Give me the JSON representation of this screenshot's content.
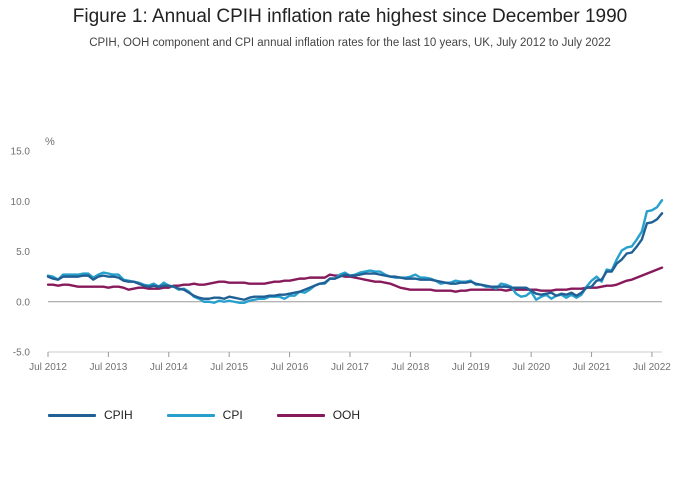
{
  "title": "Figure 1: Annual CPIH inflation rate highest since December 1990",
  "subtitle": "CPIH, OOH component and CPI annual inflation rates for the last 10 years, UK, July 2012 to July 2022",
  "colors": {
    "CPIH": "#206095",
    "CPI": "#27a0cc",
    "OOH": "#871a5b",
    "axis": "#cccccc",
    "zero": "#999999"
  },
  "chart_data": {
    "type": "line",
    "title": "Figure 1: Annual CPIH inflation rate highest since December 1990",
    "ylabel": "%",
    "xlabel": "",
    "ylim": [
      -5.0,
      15.0
    ],
    "yticks": [
      "15.0",
      "10.0",
      "5.0",
      "0.0",
      "-5.0"
    ],
    "yticks_values": [
      15,
      10,
      5,
      0,
      -5
    ],
    "xticks": [
      "Jul 2012",
      "Jul 2013",
      "Jul 2014",
      "Jul 2015",
      "Jul 2016",
      "Jul 2017",
      "Jul 2018",
      "Jul 2019",
      "Jul 2020",
      "Jul 2021",
      "Jul 2022"
    ],
    "x_start": "Jul 2012",
    "x_end": "Jul 2022",
    "x_unit": "months since Jul 2012",
    "grid": false,
    "legend_position": "bottom-left",
    "series": [
      {
        "name": "CPIH",
        "values": [
          2.5,
          2.3,
          2.2,
          2.5,
          2.5,
          2.5,
          2.5,
          2.6,
          2.6,
          2.2,
          2.5,
          2.6,
          2.5,
          2.5,
          2.4,
          2.1,
          2.0,
          2.0,
          1.8,
          1.6,
          1.5,
          1.6,
          1.5,
          1.6,
          1.6,
          1.5,
          1.3,
          1.2,
          0.9,
          0.6,
          0.4,
          0.3,
          0.3,
          0.4,
          0.4,
          0.3,
          0.5,
          0.4,
          0.3,
          0.2,
          0.4,
          0.5,
          0.5,
          0.5,
          0.6,
          0.6,
          0.7,
          0.7,
          0.8,
          0.9,
          1.0,
          1.2,
          1.4,
          1.6,
          1.8,
          1.9,
          2.3,
          2.3,
          2.5,
          2.7,
          2.6,
          2.6,
          2.7,
          2.8,
          2.8,
          2.8,
          2.7,
          2.6,
          2.5,
          2.5,
          2.4,
          2.3,
          2.3,
          2.3,
          2.2,
          2.2,
          2.2,
          2.1,
          2.0,
          1.9,
          1.8,
          1.8,
          1.9,
          1.9,
          2.0,
          1.8,
          1.7,
          1.6,
          1.5,
          1.5,
          1.5,
          1.5,
          1.4,
          1.4,
          1.4,
          1.4,
          1.1,
          0.8,
          0.7,
          0.8,
          0.9,
          0.6,
          0.8,
          0.7,
          0.9,
          0.6,
          0.9,
          1.4,
          1.5,
          2.1,
          2.2,
          3.0,
          3.0,
          3.8,
          4.2,
          4.8,
          4.9,
          5.5,
          6.2,
          7.8,
          7.9,
          8.2,
          8.8
        ]
      },
      {
        "name": "CPI",
        "values": [
          2.6,
          2.5,
          2.2,
          2.7,
          2.7,
          2.7,
          2.7,
          2.8,
          2.8,
          2.4,
          2.7,
          2.9,
          2.8,
          2.7,
          2.7,
          2.2,
          2.1,
          2.0,
          1.9,
          1.7,
          1.6,
          1.8,
          1.5,
          1.9,
          1.6,
          1.5,
          1.2,
          1.3,
          1.0,
          0.5,
          0.3,
          0.0,
          0.0,
          -0.1,
          0.1,
          0.0,
          0.1,
          0.0,
          -0.1,
          -0.1,
          0.1,
          0.2,
          0.3,
          0.3,
          0.5,
          0.5,
          0.5,
          0.3,
          0.6,
          0.6,
          1.0,
          0.9,
          1.2,
          1.6,
          1.8,
          1.8,
          2.3,
          2.3,
          2.7,
          2.9,
          2.6,
          2.7,
          2.9,
          3.0,
          3.1,
          3.0,
          3.0,
          2.7,
          2.5,
          2.4,
          2.4,
          2.4,
          2.5,
          2.7,
          2.4,
          2.4,
          2.3,
          2.1,
          1.8,
          1.9,
          1.9,
          2.1,
          2.0,
          2.0,
          2.1,
          1.7,
          1.7,
          1.5,
          1.5,
          1.3,
          1.8,
          1.7,
          1.5,
          0.8,
          0.5,
          0.6,
          1.0,
          0.2,
          0.5,
          0.7,
          0.3,
          0.6,
          0.7,
          0.4,
          0.7,
          0.4,
          0.7,
          1.5,
          2.1,
          2.5,
          2.0,
          3.2,
          3.1,
          4.2,
          5.1,
          5.4,
          5.5,
          6.2,
          7.0,
          9.0,
          9.1,
          9.4,
          10.1
        ]
      },
      {
        "name": "OOH",
        "values": [
          1.7,
          1.7,
          1.6,
          1.7,
          1.7,
          1.6,
          1.5,
          1.5,
          1.5,
          1.5,
          1.5,
          1.5,
          1.4,
          1.5,
          1.5,
          1.4,
          1.2,
          1.3,
          1.4,
          1.4,
          1.3,
          1.3,
          1.3,
          1.4,
          1.4,
          1.6,
          1.6,
          1.7,
          1.7,
          1.8,
          1.7,
          1.7,
          1.8,
          1.9,
          2.0,
          2.0,
          1.9,
          1.9,
          1.9,
          1.9,
          1.8,
          1.8,
          1.8,
          1.8,
          1.9,
          2.0,
          2.0,
          2.1,
          2.1,
          2.2,
          2.3,
          2.3,
          2.4,
          2.4,
          2.4,
          2.4,
          2.7,
          2.6,
          2.6,
          2.5,
          2.5,
          2.4,
          2.3,
          2.2,
          2.1,
          2.0,
          2.0,
          1.9,
          1.8,
          1.6,
          1.4,
          1.3,
          1.2,
          1.2,
          1.2,
          1.2,
          1.2,
          1.1,
          1.1,
          1.1,
          1.1,
          1.0,
          1.1,
          1.1,
          1.2,
          1.2,
          1.2,
          1.2,
          1.2,
          1.2,
          1.2,
          1.1,
          1.2,
          1.2,
          1.2,
          1.2,
          1.2,
          1.2,
          1.1,
          1.1,
          1.1,
          1.2,
          1.2,
          1.2,
          1.3,
          1.3,
          1.3,
          1.4,
          1.4,
          1.4,
          1.5,
          1.6,
          1.6,
          1.7,
          1.9,
          2.1,
          2.2,
          2.4,
          2.6,
          2.8,
          3.0,
          3.2,
          3.4
        ]
      }
    ]
  },
  "legend": [
    {
      "label": "CPIH",
      "color": "#206095"
    },
    {
      "label": "CPI",
      "color": "#27a0cc"
    },
    {
      "label": "OOH",
      "color": "#871a5b"
    }
  ]
}
